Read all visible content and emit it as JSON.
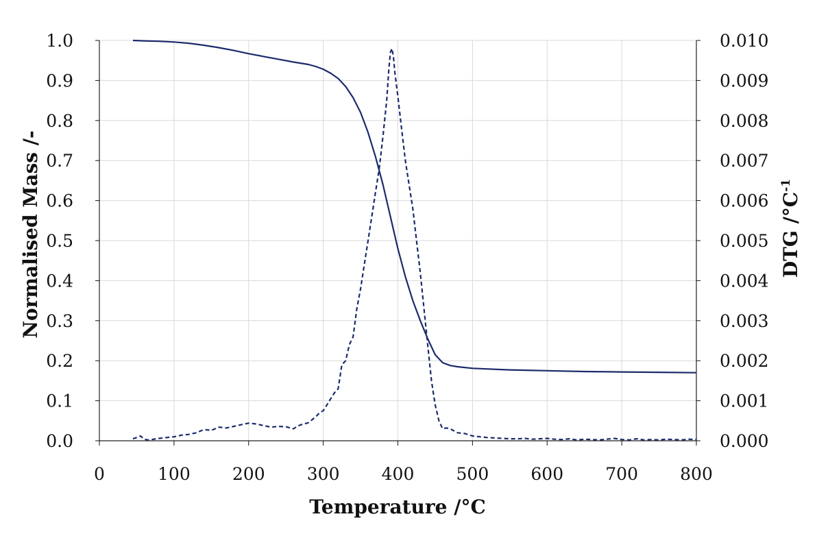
{
  "chart_data": {
    "type": "line",
    "xlabel": "Temperature /°C",
    "ylabel": "Normalised Mass /-",
    "y2label": {
      "main": "DTG  /°C",
      "sup": "-1"
    },
    "xlim": [
      0,
      800
    ],
    "ylim": [
      0,
      1.0
    ],
    "y2lim": [
      0,
      0.01
    ],
    "x_ticks": [
      "0",
      "100",
      "200",
      "300",
      "400",
      "500",
      "600",
      "700",
      "800"
    ],
    "y_ticks": [
      "0.0",
      "0.1",
      "0.2",
      "0.3",
      "0.4",
      "0.5",
      "0.6",
      "0.7",
      "0.8",
      "0.9",
      "1.0"
    ],
    "y2_ticks": [
      "0.000",
      "0.001",
      "0.002",
      "0.003",
      "0.004",
      "0.005",
      "0.006",
      "0.007",
      "0.008",
      "0.009",
      "0.010"
    ],
    "grid": true,
    "line_color": "#1b2a6b",
    "grid_color": "#d9d9d9",
    "series": [
      {
        "axis": "left",
        "style": "solid",
        "x": [
          45,
          60,
          80,
          100,
          120,
          140,
          160,
          180,
          200,
          220,
          240,
          260,
          280,
          290,
          300,
          310,
          320,
          330,
          340,
          350,
          360,
          370,
          380,
          390,
          400,
          410,
          420,
          430,
          440,
          450,
          460,
          470,
          480,
          500,
          550,
          600,
          650,
          700,
          750,
          800
        ],
        "y": [
          1.0,
          0.999,
          0.998,
          0.996,
          0.993,
          0.988,
          0.982,
          0.975,
          0.967,
          0.96,
          0.953,
          0.946,
          0.94,
          0.935,
          0.928,
          0.918,
          0.905,
          0.885,
          0.857,
          0.82,
          0.77,
          0.71,
          0.64,
          0.56,
          0.48,
          0.41,
          0.35,
          0.3,
          0.255,
          0.215,
          0.195,
          0.188,
          0.185,
          0.181,
          0.177,
          0.175,
          0.173,
          0.172,
          0.171,
          0.17
        ]
      },
      {
        "axis": "right",
        "style": "dashed",
        "x": [
          45,
          50,
          55,
          60,
          65,
          70,
          80,
          90,
          100,
          110,
          120,
          130,
          140,
          150,
          160,
          170,
          180,
          190,
          200,
          210,
          220,
          230,
          240,
          250,
          260,
          265,
          270,
          280,
          290,
          295,
          300,
          305,
          310,
          315,
          320,
          325,
          330,
          335,
          340,
          345,
          350,
          355,
          360,
          365,
          370,
          375,
          380,
          385,
          388,
          390,
          392,
          394,
          396,
          400,
          405,
          410,
          415,
          420,
          425,
          430,
          435,
          440,
          445,
          450,
          455,
          460,
          465,
          470,
          480,
          490,
          500,
          510,
          520,
          530,
          540,
          550,
          560,
          570,
          580,
          590,
          600,
          610,
          620,
          630,
          640,
          650,
          660,
          670,
          680,
          690,
          700,
          710,
          720,
          730,
          740,
          750,
          760,
          770,
          780,
          790,
          800
        ],
        "y": [
          5e-05,
          8e-05,
          0.00012,
          4e-05,
          2e-05,
          3e-05,
          6e-05,
          8e-05,
          0.0001,
          0.00014,
          0.00016,
          0.0002,
          0.00028,
          0.00026,
          0.00034,
          0.00032,
          0.00036,
          0.0004,
          0.00044,
          0.00042,
          0.00038,
          0.00034,
          0.00036,
          0.00035,
          0.0003,
          0.00036,
          0.0004,
          0.00045,
          0.0006,
          0.0007,
          0.00075,
          0.0009,
          0.00105,
          0.0012,
          0.0013,
          0.0019,
          0.002,
          0.0024,
          0.0026,
          0.0033,
          0.0038,
          0.0044,
          0.005,
          0.0056,
          0.0062,
          0.0068,
          0.0076,
          0.0085,
          0.0093,
          0.0097,
          0.0098,
          0.0096,
          0.0092,
          0.0086,
          0.0078,
          0.007,
          0.0064,
          0.0058,
          0.005,
          0.0042,
          0.0033,
          0.0024,
          0.0015,
          0.0009,
          0.0005,
          0.0003,
          0.00032,
          0.0003,
          0.0002,
          0.00018,
          0.00012,
          0.0001,
          8e-05,
          7e-05,
          6e-05,
          5e-05,
          5e-05,
          6e-05,
          4e-05,
          5e-05,
          6e-05,
          4e-05,
          3e-05,
          5e-05,
          2e-05,
          4e-05,
          3e-05,
          2e-05,
          4e-05,
          6e-05,
          3e-05,
          2e-05,
          5e-05,
          2e-05,
          3e-05,
          2e-05,
          4e-05,
          3e-05,
          2e-05,
          4e-05,
          3e-05
        ]
      }
    ]
  }
}
